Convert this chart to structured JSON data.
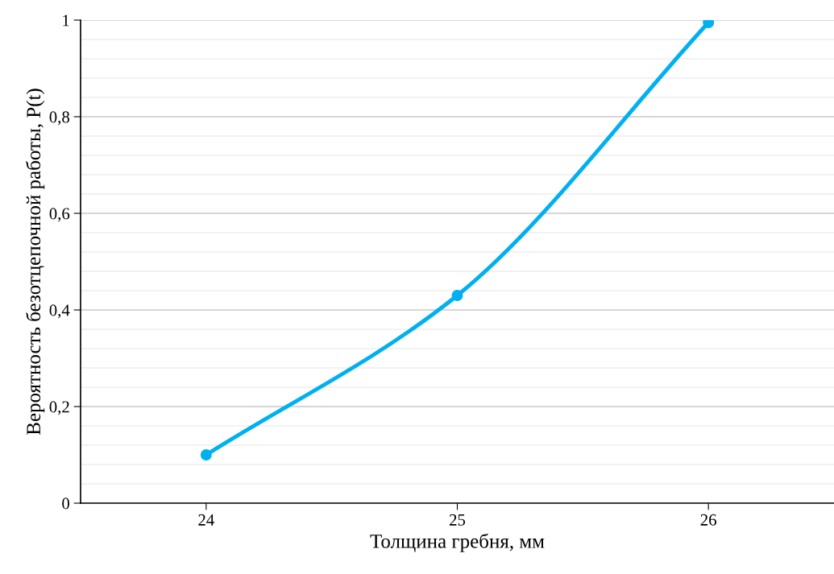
{
  "chart_data": {
    "type": "line",
    "xlabel": "Толщина гребня, мм",
    "ylabel": "Вероятность безотцепочной работы, P(t)",
    "x": [
      24,
      25,
      26
    ],
    "series": [
      {
        "color": "#00b0f0",
        "values": [
          0.1,
          0.43,
          0.995
        ]
      }
    ],
    "xlim": [
      23.5,
      26.5
    ],
    "xticks": [
      24,
      25,
      26
    ],
    "ylim": [
      0,
      1
    ],
    "yticks": [
      {
        "value": 0,
        "label": "0"
      },
      {
        "value": 0.2,
        "label": "0,2"
      },
      {
        "value": 0.4,
        "label": "0,4"
      },
      {
        "value": 0.6,
        "label": "0,6"
      },
      {
        "value": 0.8,
        "label": "0,8"
      },
      {
        "value": 1,
        "label": "1"
      }
    ],
    "grid": "y",
    "marker": "circle",
    "line_style": "solid",
    "legend": false
  }
}
